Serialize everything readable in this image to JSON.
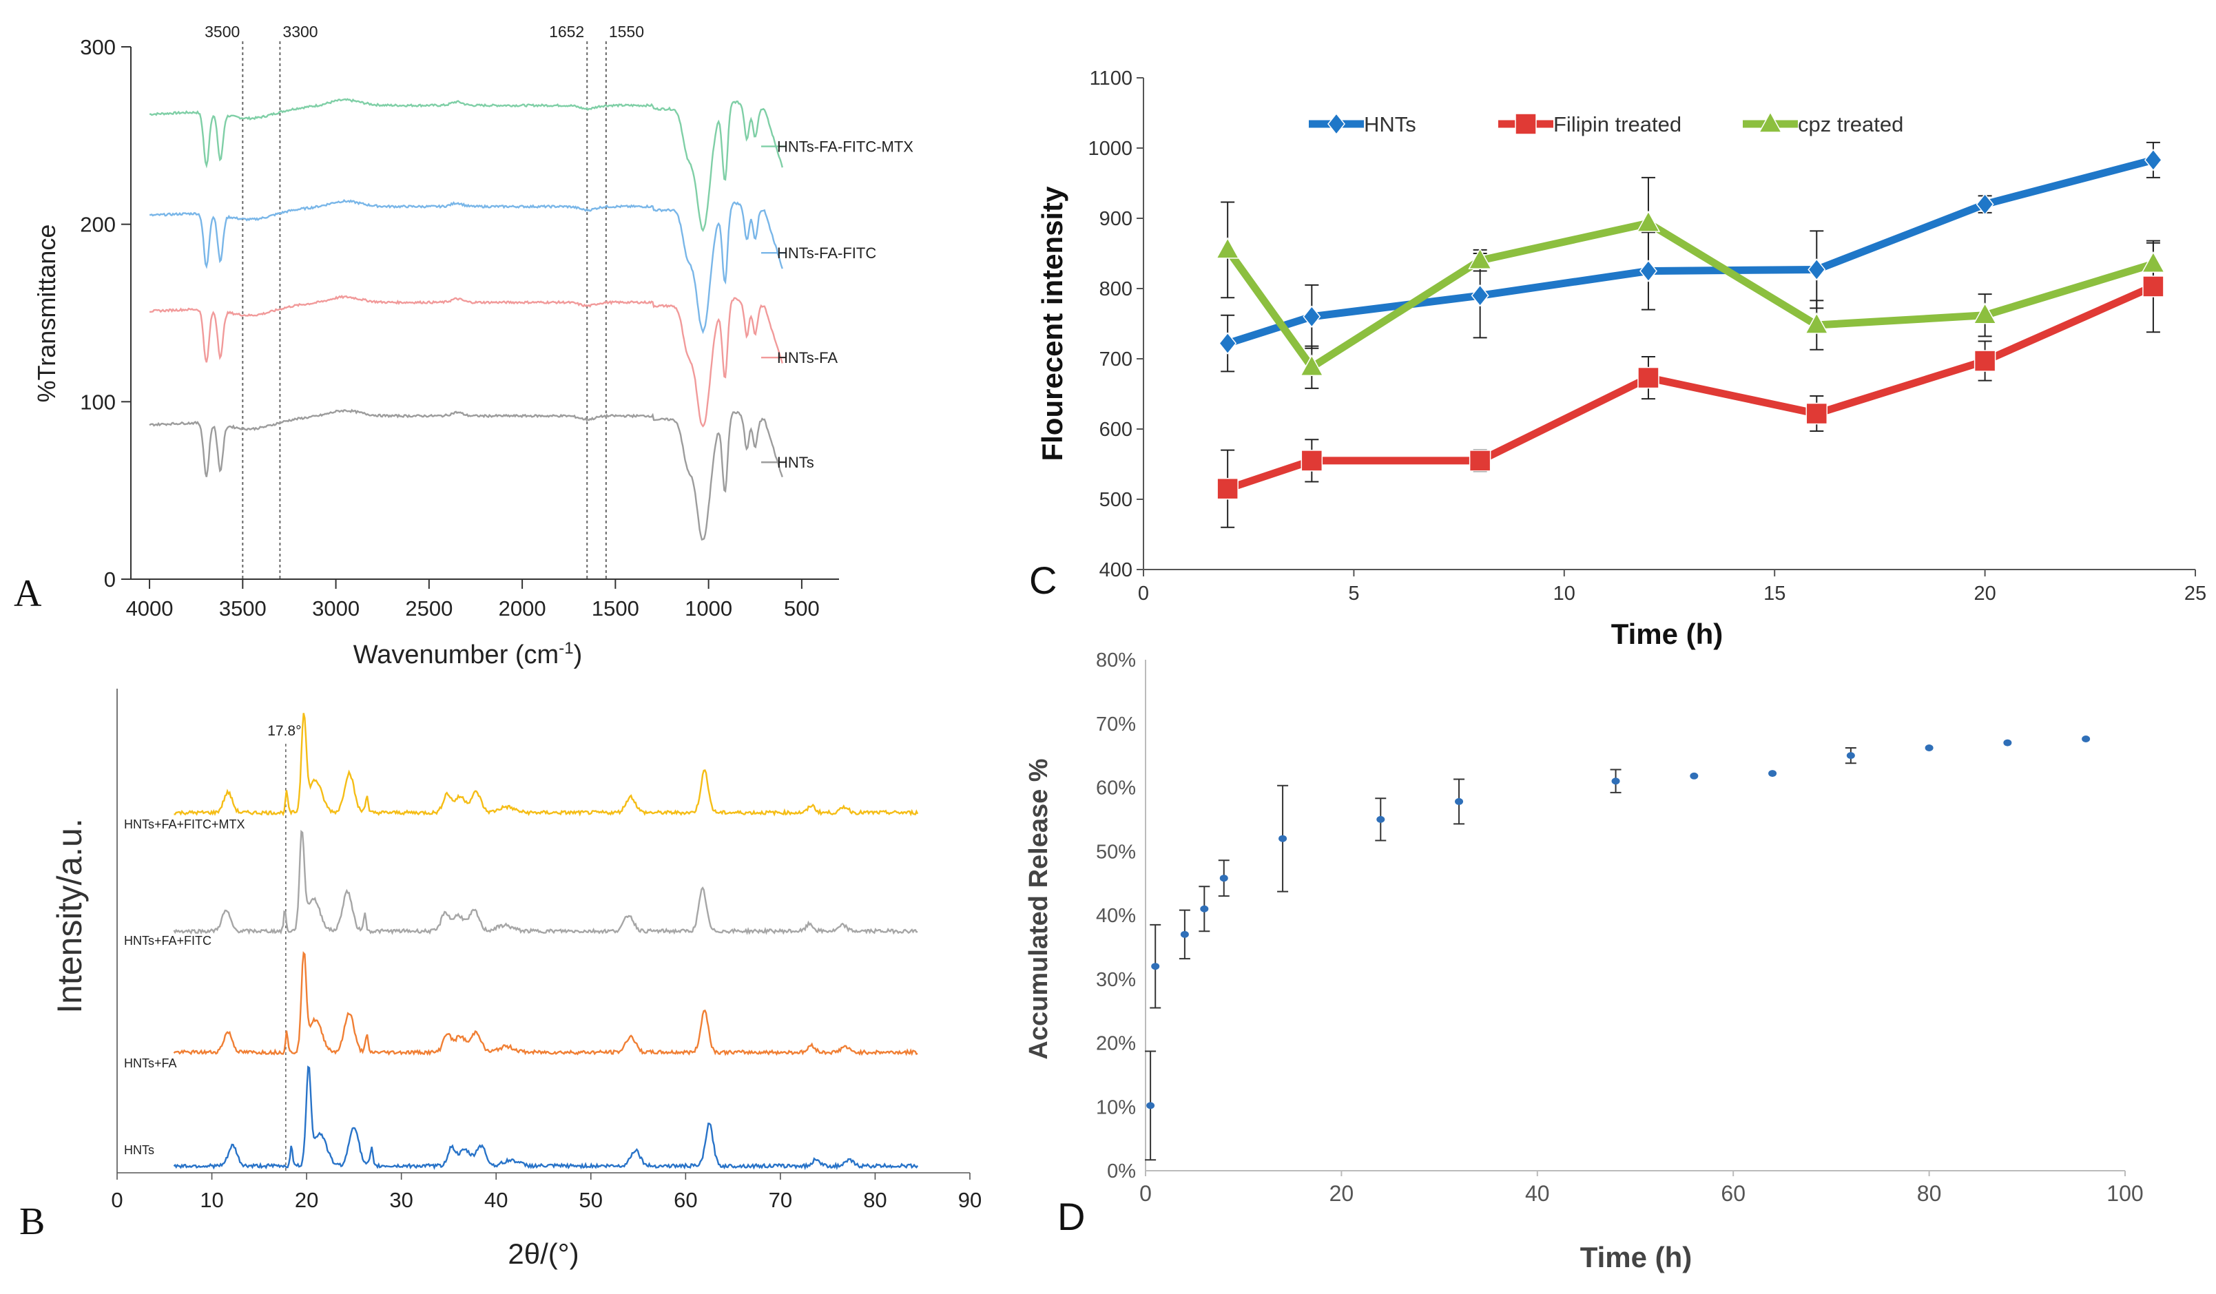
{
  "figure": {
    "panel_letters": [
      "A",
      "B",
      "C",
      "D"
    ]
  },
  "chart_data": [
    {
      "panel": "A",
      "type": "line",
      "xlabel": "Wavenumber (cm",
      "xlabel_sup": "-1",
      "xlabel_tail": ")",
      "ylabel": "%Transmittance",
      "xlim": [
        4000,
        500
      ],
      "ylim": [
        0,
        300
      ],
      "xticks": [
        4000,
        3500,
        3000,
        2500,
        2000,
        1500,
        1000,
        500
      ],
      "xtick_labels": [
        "4000",
        "3500",
        "3000",
        "2500",
        "2000",
        "1500",
        "1000",
        "500"
      ],
      "yticks": [
        0,
        100,
        200,
        300
      ],
      "ytick_labels": [
        "0",
        "100",
        "200",
        "300"
      ],
      "reference_lines": [
        3500,
        3300,
        1652,
        1550
      ],
      "reference_labels": [
        "3500",
        "3300",
        "1652",
        "1550"
      ],
      "series": [
        {
          "name": "HNTs-FA-FITC-MTX",
          "color": "#7fcfa6",
          "offset": 175,
          "legend_y": 240
        },
        {
          "name": "HNTs-FA-FITC",
          "color": "#79b6e8",
          "offset": 118,
          "legend_y": 180
        },
        {
          "name": "HNTs-FA",
          "color": "#f19a9a",
          "offset": 64,
          "legend_y": 121
        },
        {
          "name": "HNTs",
          "color": "#9c9c9c",
          "offset": 0,
          "legend_y": 62
        }
      ]
    },
    {
      "panel": "B",
      "type": "line",
      "xlabel": "2θ/(°)",
      "ylabel": "Intensity/a.u.",
      "xlim": [
        0,
        90
      ],
      "xticks": [
        0,
        10,
        20,
        30,
        40,
        50,
        60,
        70,
        80,
        90
      ],
      "xtick_labels": [
        "0",
        "10",
        "20",
        "30",
        "40",
        "50",
        "60",
        "70",
        "80",
        "90"
      ],
      "reference_line": 17.8,
      "reference_label": "17.8°",
      "series": [
        {
          "name": "HNTs+FA+FITC+MTX",
          "color": "#f5bd16"
        },
        {
          "name": "HNTs+FA+FITC",
          "color": "#a6a6a6"
        },
        {
          "name": "HNTs+FA",
          "color": "#f07f34"
        },
        {
          "name": "HNTs",
          "color": "#2873c8"
        }
      ]
    },
    {
      "panel": "C",
      "type": "line",
      "xlabel": "Time (h)",
      "ylabel": "Flourecent intensity",
      "xlim": [
        0,
        25
      ],
      "ylim": [
        400,
        1100
      ],
      "xticks": [
        0,
        5,
        10,
        15,
        20,
        25
      ],
      "xtick_labels": [
        "0",
        "5",
        "10",
        "15",
        "20",
        "25"
      ],
      "yticks": [
        400,
        500,
        600,
        700,
        800,
        900,
        1000,
        1100
      ],
      "ytick_labels": [
        "400",
        "500",
        "600",
        "700",
        "800",
        "900",
        "1000",
        "1100"
      ],
      "x": [
        2,
        4,
        8,
        12,
        16,
        20,
        24
      ],
      "series": [
        {
          "name": "HNTs",
          "color": "#1f77c8",
          "marker": "diamond",
          "values": [
            722,
            760,
            790,
            825,
            827,
            920,
            983
          ],
          "errors": [
            40,
            45,
            60,
            55,
            55,
            12,
            25
          ]
        },
        {
          "name": "Filipin treated",
          "color": "#e03a35",
          "marker": "square",
          "values": [
            515,
            555,
            555,
            673,
            622,
            697,
            803
          ],
          "errors": [
            55,
            30,
            15,
            30,
            25,
            28,
            65
          ]
        },
        {
          "name": "cpz treated",
          "color": "#8cbf3f",
          "marker": "triangle",
          "values": [
            855,
            688,
            840,
            893,
            748,
            762,
            835
          ],
          "errors": [
            68,
            30,
            15,
            65,
            35,
            30,
            30
          ]
        }
      ]
    },
    {
      "panel": "D",
      "type": "scatter",
      "xlabel": "Time (h)",
      "ylabel": "Accumulated Release %",
      "xlim": [
        0,
        100
      ],
      "ylim": [
        0,
        80
      ],
      "xticks": [
        0,
        20,
        40,
        60,
        80,
        100
      ],
      "xtick_labels": [
        "0",
        "20",
        "40",
        "60",
        "80",
        "100"
      ],
      "yticks": [
        0,
        10,
        20,
        30,
        40,
        50,
        60,
        70,
        80
      ],
      "ytick_labels": [
        "0%",
        "10%",
        "20%",
        "30%",
        "40%",
        "50%",
        "60%",
        "70%",
        "80%"
      ],
      "color": "#2f6fb8",
      "x": [
        0.5,
        1,
        4,
        6,
        8,
        14,
        24,
        32,
        48,
        56,
        64,
        72,
        80,
        88,
        96
      ],
      "values": [
        10.2,
        32.0,
        37.0,
        41.0,
        45.8,
        52.0,
        55.0,
        57.8,
        61.0,
        61.8,
        62.2,
        65.0,
        66.2,
        67.0,
        67.6
      ],
      "errors": [
        8.5,
        6.5,
        3.8,
        3.5,
        2.8,
        8.3,
        3.3,
        3.5,
        1.8,
        0,
        0,
        1.2,
        0,
        0,
        0
      ]
    }
  ]
}
